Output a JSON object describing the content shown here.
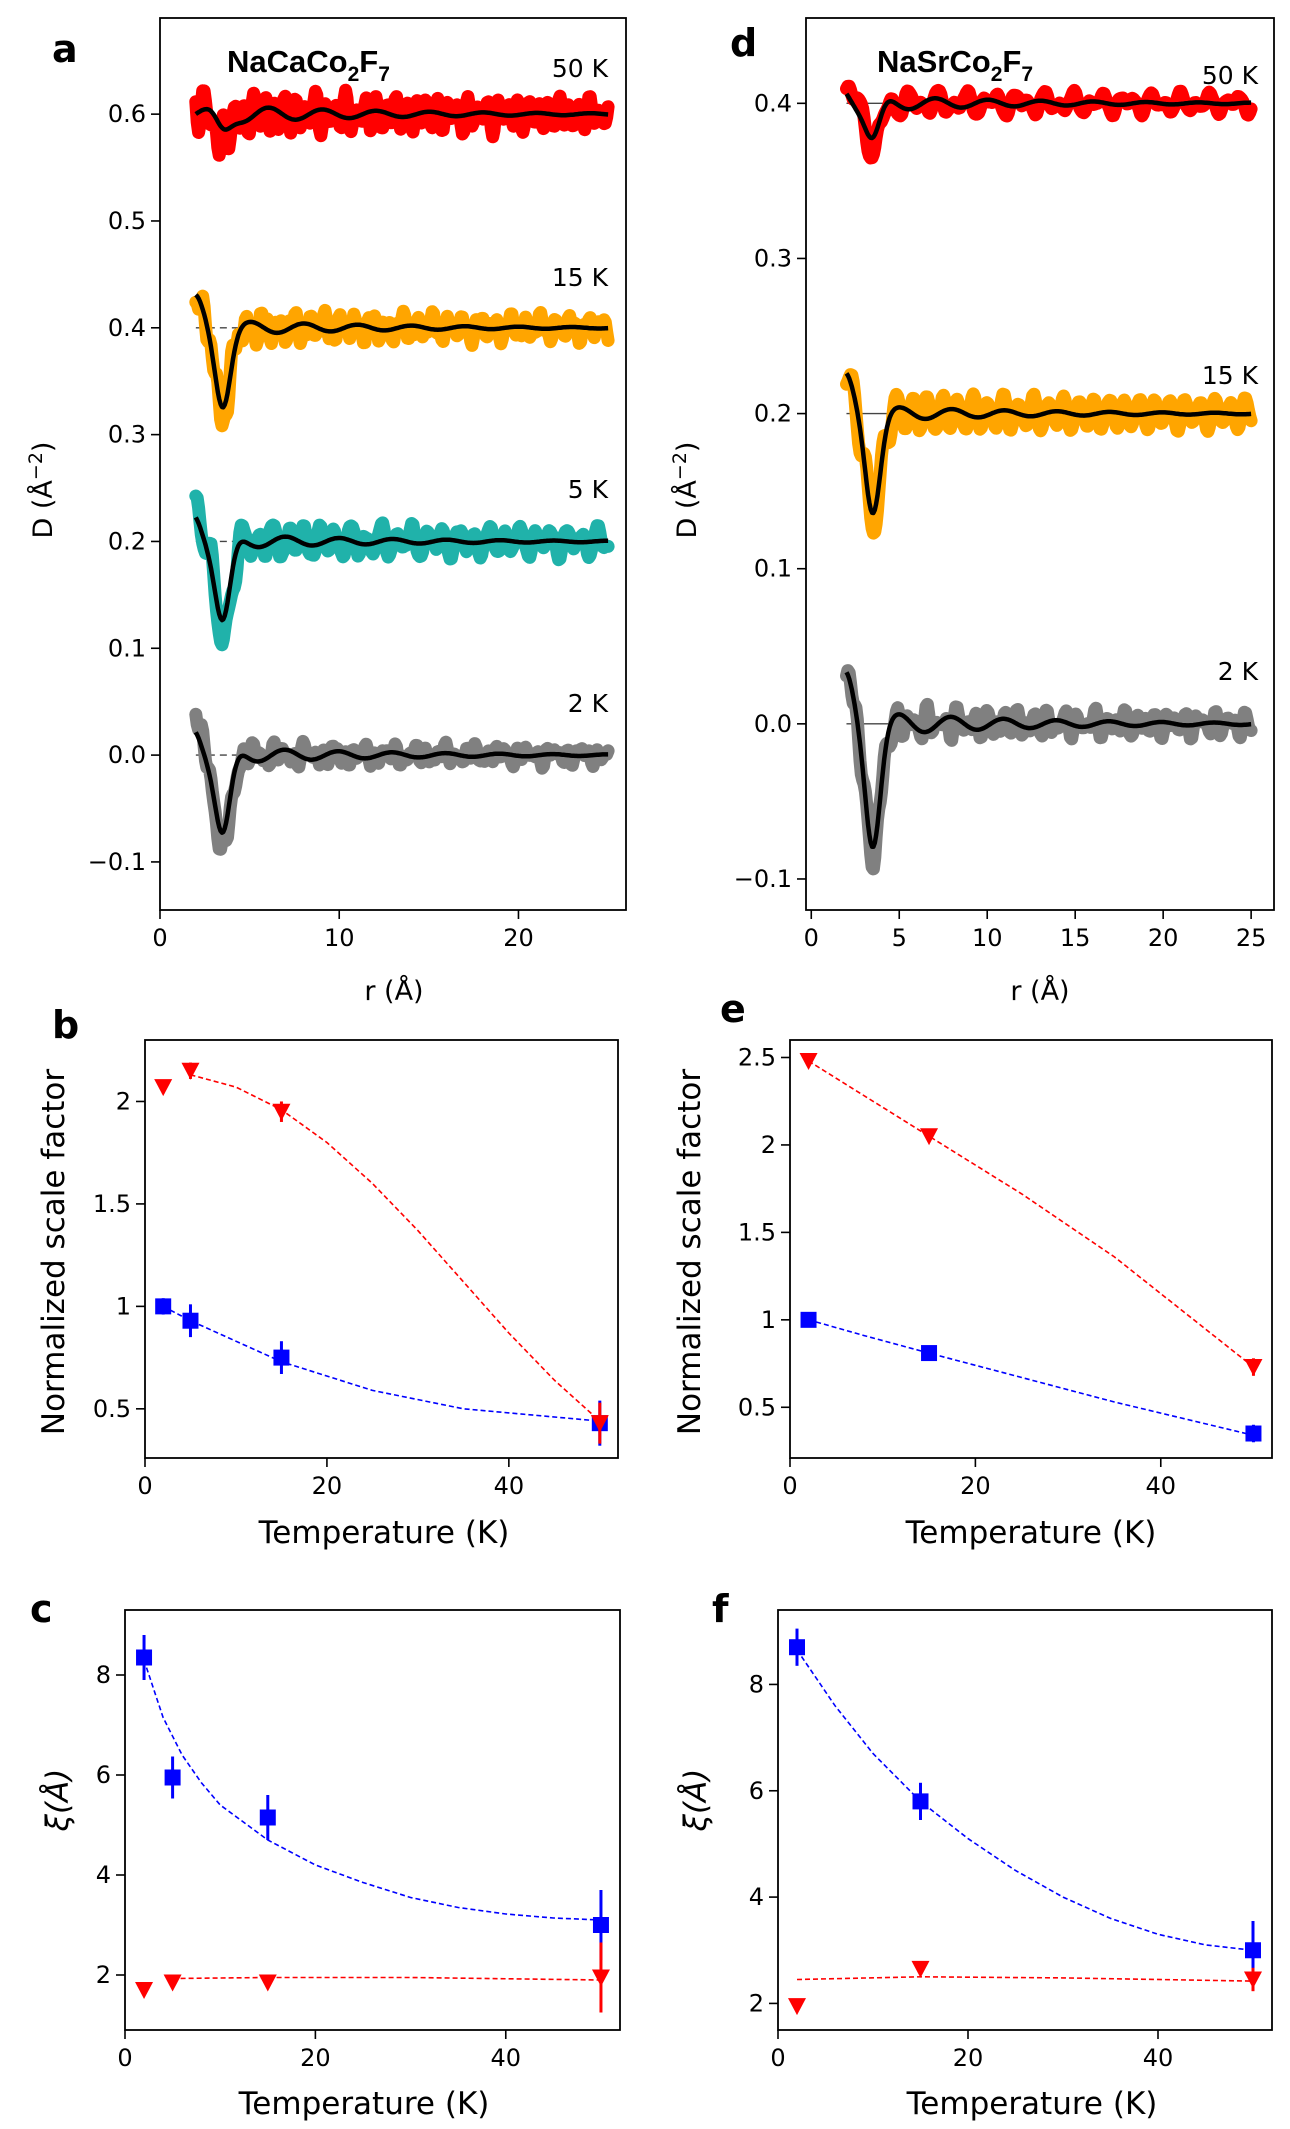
{
  "chart_data": [
    {
      "panel": "a",
      "type": "line",
      "title": "NaCaCo2F7",
      "xlabel": "r (Å)",
      "ylabel": "D (Å⁻²)",
      "xlim": [
        0,
        26
      ],
      "ylim": [
        -0.145,
        0.69
      ],
      "xticks": [
        0,
        10,
        20
      ],
      "yticks": [
        -0.1,
        0.0,
        0.1,
        0.2,
        0.3,
        0.4,
        0.5,
        0.6
      ],
      "ytick_labels": [
        "−0.1",
        "0.0",
        "0.1",
        "0.2",
        "0.3",
        "0.4",
        "0.5",
        "0.6"
      ],
      "baseline_style": "dashed",
      "series": [
        {
          "name": "50 K",
          "offset": 0.6,
          "color": "#ff0000",
          "depth": 0.022,
          "noise": 0.022,
          "seed": 3
        },
        {
          "name": "15 K",
          "offset": 0.4,
          "color": "#ffa500",
          "depth": 0.08,
          "noise": 0.018,
          "seed": 7
        },
        {
          "name": "5 K",
          "offset": 0.2,
          "color": "#20b2aa",
          "depth": 0.09,
          "noise": 0.018,
          "seed": 11
        },
        {
          "name": "2 K",
          "offset": 0.0,
          "color": "#808080",
          "depth": 0.09,
          "noise": 0.02,
          "seed": 17
        }
      ]
    },
    {
      "panel": "d",
      "type": "line",
      "title": "NaSrCo2F7",
      "xlabel": "r (Å)",
      "ylabel": "D (Å⁻²)",
      "xlim": [
        -0.3,
        26.3
      ],
      "ylim": [
        -0.12,
        0.455
      ],
      "xticks": [
        0,
        5,
        10,
        15,
        20,
        25
      ],
      "yticks": [
        -0.1,
        0.0,
        0.1,
        0.2,
        0.3,
        0.4
      ],
      "ytick_labels": [
        "−0.1",
        "0.0",
        "0.1",
        "0.2",
        "0.3",
        "0.4"
      ],
      "baseline_style": "solid",
      "series": [
        {
          "name": "50 K",
          "offset": 0.4,
          "color": "#ff0000",
          "depth": 0.028,
          "noise": 0.013,
          "seed": 5
        },
        {
          "name": "15 K",
          "offset": 0.2,
          "color": "#ffa500",
          "depth": 0.07,
          "noise": 0.013,
          "seed": 13
        },
        {
          "name": "2 K",
          "offset": 0.0,
          "color": "#808080",
          "depth": 0.085,
          "noise": 0.02,
          "seed": 19
        }
      ]
    },
    {
      "panel": "b",
      "type": "scatter",
      "xlabel": "Temperature (K)",
      "ylabel": "Normalized scale factor",
      "xlim": [
        0,
        52
      ],
      "ylim": [
        0.26,
        2.3
      ],
      "xticks": [
        0,
        20,
        40
      ],
      "yticks": [
        0.5,
        1.0,
        1.5,
        2.0
      ],
      "series": [
        {
          "marker": "square",
          "color": "#0000ff",
          "x": [
            2,
            5,
            15,
            50
          ],
          "y": [
            1.0,
            0.93,
            0.75,
            0.43
          ],
          "err": [
            0.04,
            0.08,
            0.08,
            0.11
          ],
          "fit": [
            [
              2,
              1.0
            ],
            [
              5,
              0.93
            ],
            [
              15,
              0.73
            ],
            [
              25,
              0.59
            ],
            [
              35,
              0.5
            ],
            [
              50,
              0.44
            ]
          ]
        },
        {
          "marker": "triangle-down",
          "color": "#ff0000",
          "x": [
            2,
            5,
            15,
            50
          ],
          "y": [
            2.07,
            2.15,
            1.95,
            0.43
          ],
          "err": [
            0.03,
            0.04,
            0.05,
            0.1
          ],
          "fit": [
            [
              5,
              2.13
            ],
            [
              10,
              2.07
            ],
            [
              15,
              1.96
            ],
            [
              20,
              1.8
            ],
            [
              25,
              1.6
            ],
            [
              30,
              1.37
            ],
            [
              35,
              1.12
            ],
            [
              40,
              0.87
            ],
            [
              45,
              0.64
            ],
            [
              50,
              0.44
            ]
          ]
        }
      ]
    },
    {
      "panel": "e",
      "type": "scatter",
      "xlabel": "Temperature (K)",
      "ylabel": "Normalized scale factor",
      "xlim": [
        0,
        52
      ],
      "ylim": [
        0.21,
        2.6
      ],
      "xticks": [
        0,
        20,
        40
      ],
      "yticks": [
        0.5,
        1.0,
        1.5,
        2.0,
        2.5
      ],
      "series": [
        {
          "marker": "square",
          "color": "#0000ff",
          "x": [
            2,
            15,
            50
          ],
          "y": [
            1.0,
            0.81,
            0.35
          ],
          "err": [
            0.02,
            0.03,
            0.05
          ],
          "fit": [
            [
              2,
              1.0
            ],
            [
              8,
              0.91
            ],
            [
              15,
              0.81
            ],
            [
              25,
              0.67
            ],
            [
              35,
              0.53
            ],
            [
              50,
              0.34
            ]
          ]
        },
        {
          "marker": "triangle-down",
          "color": "#ff0000",
          "x": [
            2,
            15,
            50
          ],
          "y": [
            2.48,
            2.05,
            0.73
          ],
          "err": [
            0.02,
            0.02,
            0.05
          ],
          "fit": [
            [
              2,
              2.48
            ],
            [
              15,
              2.05
            ],
            [
              25,
              1.72
            ],
            [
              35,
              1.36
            ],
            [
              50,
              0.73
            ]
          ]
        }
      ]
    },
    {
      "panel": "c",
      "type": "scatter",
      "xlabel": "Temperature (K)",
      "ylabel": "ξ(Å)",
      "xlim": [
        0,
        52
      ],
      "ylim": [
        0.9,
        9.3
      ],
      "xticks": [
        0,
        20,
        40
      ],
      "yticks": [
        2,
        4,
        6,
        8
      ],
      "series": [
        {
          "marker": "square",
          "color": "#0000ff",
          "x": [
            2,
            5,
            15,
            50
          ],
          "y": [
            8.35,
            5.95,
            5.15,
            3.0
          ],
          "err": [
            0.45,
            0.42,
            0.45,
            0.7
          ],
          "fit": [
            [
              2,
              8.3
            ],
            [
              4,
              7.15
            ],
            [
              6,
              6.4
            ],
            [
              8,
              5.85
            ],
            [
              10,
              5.4
            ],
            [
              15,
              4.7
            ],
            [
              20,
              4.2
            ],
            [
              25,
              3.85
            ],
            [
              30,
              3.55
            ],
            [
              35,
              3.35
            ],
            [
              40,
              3.22
            ],
            [
              45,
              3.14
            ],
            [
              50,
              3.1
            ]
          ]
        },
        {
          "marker": "triangle-down",
          "color": "#ff0000",
          "x": [
            2,
            5,
            15,
            50
          ],
          "y": [
            1.7,
            1.85,
            1.85,
            1.95
          ],
          "err": [
            0.0,
            0.0,
            0.0,
            0.7
          ],
          "fit": [
            [
              5,
              1.93
            ],
            [
              15,
              1.95
            ],
            [
              30,
              1.95
            ],
            [
              50,
              1.9
            ]
          ]
        }
      ]
    },
    {
      "panel": "f",
      "type": "scatter",
      "xlabel": "Temperature (K)",
      "ylabel": "ξ(Å)",
      "xlim": [
        0,
        52
      ],
      "ylim": [
        1.5,
        9.4
      ],
      "xticks": [
        0,
        20,
        40
      ],
      "yticks": [
        2,
        4,
        6,
        8
      ],
      "series": [
        {
          "marker": "square",
          "color": "#0000ff",
          "x": [
            2,
            15,
            50
          ],
          "y": [
            8.7,
            5.8,
            3.0
          ],
          "err": [
            0.35,
            0.35,
            0.55
          ],
          "fit": [
            [
              2,
              8.65
            ],
            [
              6,
              7.6
            ],
            [
              10,
              6.7
            ],
            [
              15,
              5.8
            ],
            [
              20,
              5.1
            ],
            [
              25,
              4.5
            ],
            [
              30,
              4.0
            ],
            [
              35,
              3.6
            ],
            [
              40,
              3.3
            ],
            [
              45,
              3.1
            ],
            [
              50,
              3.0
            ]
          ]
        },
        {
          "marker": "triangle-down",
          "color": "#ff0000",
          "x": [
            2,
            15,
            50
          ],
          "y": [
            1.95,
            2.65,
            2.45
          ],
          "err": [
            0.0,
            0.0,
            0.22
          ],
          "fit": [
            [
              2,
              2.45
            ],
            [
              15,
              2.5
            ],
            [
              30,
              2.48
            ],
            [
              50,
              2.42
            ]
          ]
        }
      ]
    }
  ]
}
